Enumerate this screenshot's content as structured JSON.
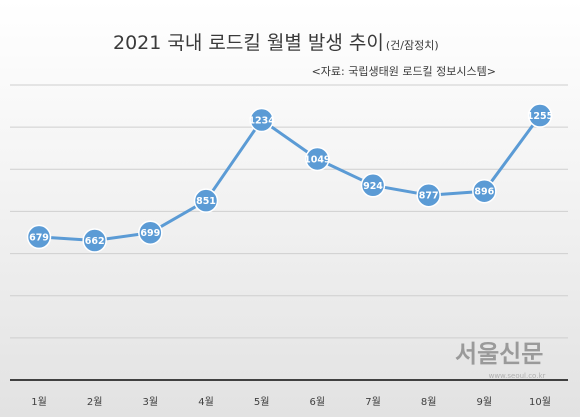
{
  "chart_data": {
    "type": "line",
    "title": "2021 국내 로드킬 월별 발생 추이",
    "title_unit": "(건/잠정치)",
    "subtitle": "<자료: 국립생태원 로드킬 정보시스템>",
    "categories": [
      "1월",
      "2월",
      "3월",
      "4월",
      "5월",
      "6월",
      "7월",
      "8월",
      "9월",
      "10월"
    ],
    "series": [
      {
        "values": [
          679,
          662,
          699,
          851,
          1234,
          1049,
          924,
          877,
          896,
          1255
        ],
        "labels": [
          "679",
          "662",
          "699",
          "851",
          "1234",
          "1049",
          "924",
          "877",
          "896",
          "1255"
        ]
      }
    ],
    "ylim": [
      0,
      1400
    ],
    "grid": true,
    "line_color": "#5b9bd5",
    "marker_color": "#5b9bd5",
    "gridline_color": "#cfcfcf",
    "axis_color": "#404040"
  },
  "watermark": {
    "text": "서울신문",
    "url": "www.seoul.co.kr"
  }
}
